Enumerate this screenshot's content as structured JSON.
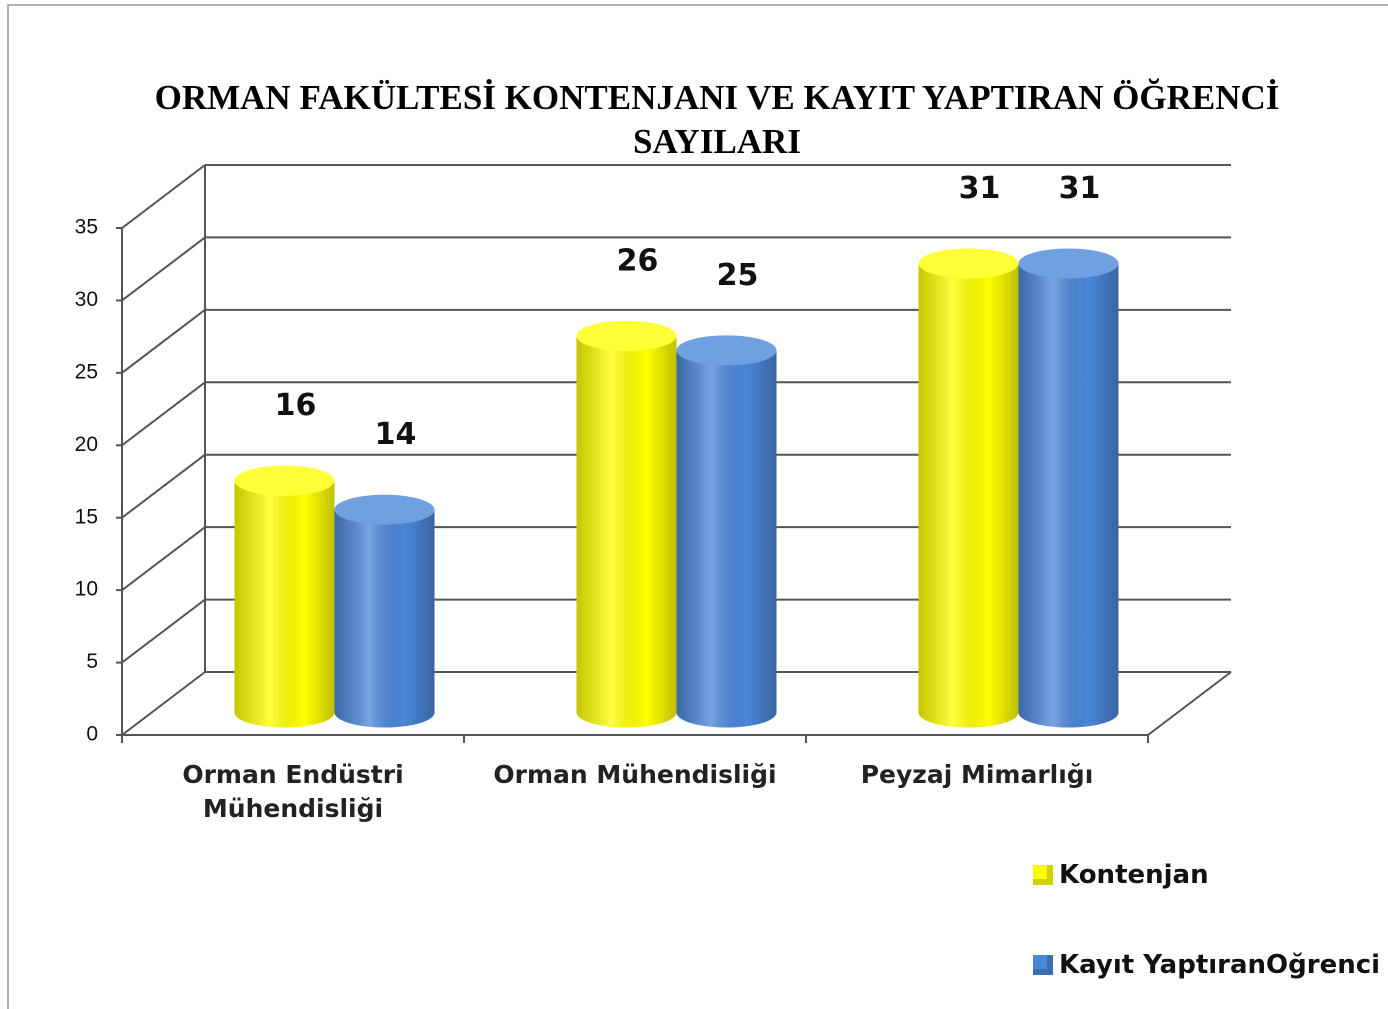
{
  "chart_data": {
    "type": "bar3d",
    "title": "ORMAN FAKÜLTESİ KONTENJANI VE KAYIT YAPTIRAN ÖĞRENCİ SAYILARI",
    "categories": [
      "Orman Endüstri Mühendisliği",
      "Orman Mühendisliği",
      "Peyzaj Mimarlığı"
    ],
    "series": [
      {
        "name": "Kontenjan",
        "color": "#ffff00",
        "values": [
          16,
          26,
          31
        ]
      },
      {
        "name": "Kayıt YaptıranOğrenci",
        "color": "#4a86d8",
        "values": [
          14,
          25,
          31
        ]
      }
    ],
    "ylim": [
      0,
      35
    ],
    "yticks": [
      0,
      5,
      10,
      15,
      20,
      25,
      30,
      35
    ],
    "grid": true
  }
}
